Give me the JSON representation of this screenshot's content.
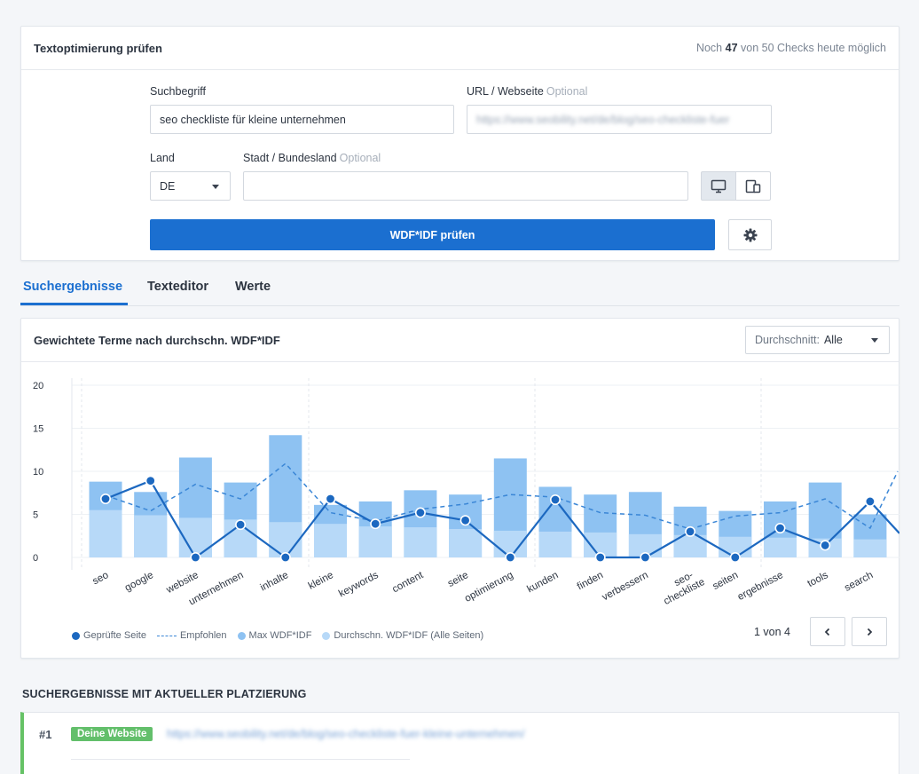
{
  "form": {
    "title": "Textoptimierung prüfen",
    "checks_prefix": "Noch",
    "checks_count": "47",
    "checks_suffix": "von 50 Checks heute möglich",
    "keyword_label": "Suchbegriff",
    "keyword_value": "seo checkliste für kleine unternehmen",
    "url_label": "URL / Webseite",
    "url_optional": "Optional",
    "url_value": "https://www.seobility.net/de/blog/seo-checkliste-fuer",
    "country_label": "Land",
    "country_value": "DE",
    "city_label": "Stadt / Bundesland",
    "city_optional": "Optional",
    "city_value": "",
    "submit_label": "WDF*IDF prüfen",
    "device_icons": [
      "desktop-icon",
      "mobile-tablet-icon"
    ]
  },
  "tabs": [
    "Suchergebnisse",
    "Texteditor",
    "Werte"
  ],
  "chart_card": {
    "title": "Gewichtete Terme nach durchschn. WDF*IDF",
    "select_key": "Durchschnitt:",
    "select_value": "Alle",
    "pager": "1 von 4"
  },
  "chart_data": {
    "type": "bar",
    "categories": [
      "seo",
      "google",
      "website",
      "unternehmen",
      "inhalte",
      "kleine",
      "keywords",
      "content",
      "seite",
      "optimierung",
      "kunden",
      "finden",
      "verbessern",
      "seo-checkliste",
      "seiten",
      "ergebnisse",
      "tools",
      "search",
      "..."
    ],
    "ylim": [
      0,
      20
    ],
    "yticks": [
      "20",
      "15",
      "10",
      "5",
      "0"
    ],
    "series": [
      {
        "name": "Max WDF*IDF",
        "kind": "bar",
        "color": "#8ec2f2",
        "values": [
          8.8,
          7.6,
          11.6,
          8.7,
          14.2,
          6.1,
          6.5,
          7.8,
          7.3,
          11.5,
          8.2,
          7.3,
          7.6,
          5.9,
          5.4,
          6.5,
          8.7,
          5.0,
          null
        ]
      },
      {
        "name": "Durchschn. WDF*IDF (Alle Seiten)",
        "kind": "bar",
        "color": "#b7d9f8",
        "values": [
          5.5,
          4.9,
          4.6,
          4.4,
          4.1,
          3.9,
          3.6,
          3.5,
          3.3,
          3.1,
          3.0,
          2.9,
          2.7,
          2.6,
          2.4,
          2.3,
          2.2,
          2.1,
          null
        ]
      },
      {
        "name": "Empfohlen",
        "kind": "dashed-line",
        "color": "#3a86d6",
        "values": [
          7.2,
          5.4,
          8.5,
          6.8,
          10.9,
          5.2,
          4.2,
          5.6,
          6.2,
          7.3,
          7.0,
          5.2,
          4.9,
          3.3,
          4.8,
          5.2,
          6.8,
          3.4,
          10.0
        ]
      },
      {
        "name": "Geprüfte Seite",
        "kind": "line",
        "color": "#1c68c0",
        "values": [
          6.8,
          8.9,
          0.0,
          3.8,
          0.0,
          6.8,
          3.9,
          5.2,
          4.3,
          0.0,
          6.7,
          0.0,
          0.0,
          3.0,
          0.0,
          3.4,
          1.4,
          6.5,
          2.8
        ]
      }
    ]
  },
  "legend": [
    "Geprüfte Seite",
    "Empfohlen",
    "Max WDF*IDF",
    "Durchschn. WDF*IDF (Alle Seiten)"
  ],
  "results": {
    "section_title": "SUCHERGEBNISSE MIT AKTUELLER PLATZIERUNG",
    "first_rank": "#1",
    "first_badge": "Deine Website",
    "first_url": "https://www.seobility.net/de/blog/seo-checkliste-fuer-kleine-unternehmen/"
  },
  "colors": {
    "primary": "#1b6fd0",
    "badge": "#63bf6b"
  }
}
